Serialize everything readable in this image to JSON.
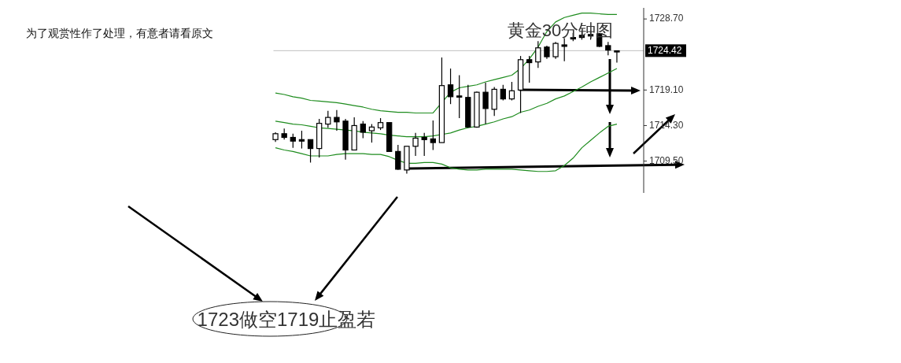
{
  "chart_data": {
    "type": "candlestick",
    "title": "黄金30分钟图",
    "annotations": [
      "为了观赏性作了处理，有意者请看原文",
      "1723做空1719止盈若"
    ],
    "categories": [
      null,
      null,
      null,
      null,
      null,
      null,
      null,
      null,
      null,
      null,
      null,
      null,
      null,
      null,
      null,
      null,
      null,
      null,
      null,
      null,
      null,
      null,
      null,
      null,
      null,
      null,
      null,
      null,
      null,
      null,
      null,
      null,
      null,
      null,
      null,
      null,
      null,
      null,
      null,
      null
    ],
    "ohlc": [
      [
        1712.4,
        1713.4,
        1712.1,
        1713.2
      ],
      [
        1713.2,
        1713.9,
        1712.4,
        1712.7
      ],
      [
        1712.7,
        1713.2,
        1711.3,
        1712.2
      ],
      [
        1712.4,
        1713.6,
        1711.2,
        1712.2
      ],
      [
        1712.4,
        1712.4,
        1709.3,
        1711.2
      ],
      [
        1711.2,
        1715.2,
        1710.0,
        1714.6
      ],
      [
        1714.5,
        1716.3,
        1714.0,
        1715.4
      ],
      [
        1715.4,
        1716.4,
        1713.6,
        1714.8
      ],
      [
        1714.9,
        1715.2,
        1709.7,
        1711.0
      ],
      [
        1711.0,
        1715.4,
        1711.0,
        1714.3
      ],
      [
        1714.5,
        1714.9,
        1712.6,
        1713.4
      ],
      [
        1713.6,
        1714.5,
        1712.0,
        1714.1
      ],
      [
        1714.0,
        1715.3,
        1713.7,
        1714.7
      ],
      [
        1714.7,
        1714.7,
        1710.8,
        1710.8
      ],
      [
        1710.8,
        1711.7,
        1708.3,
        1708.4
      ],
      [
        1708.3,
        1711.5,
        1707.8,
        1711.5
      ],
      [
        1711.5,
        1713.3,
        1710.2,
        1712.6
      ],
      [
        1712.7,
        1713.3,
        1710.2,
        1712.4
      ],
      [
        1712.5,
        1715.0,
        1711.0,
        1712.0
      ],
      [
        1712.0,
        1723.5,
        1712.0,
        1719.7
      ],
      [
        1719.8,
        1722.0,
        1717.2,
        1718.2
      ],
      [
        1718.3,
        1721.1,
        1715.3,
        1718.2
      ],
      [
        1718.1,
        1719.8,
        1714.0,
        1714.1
      ],
      [
        1714.1,
        1718.9,
        1714.0,
        1718.8
      ],
      [
        1718.8,
        1720.1,
        1714.5,
        1716.6
      ],
      [
        1716.5,
        1719.5,
        1715.6,
        1719.2
      ],
      [
        1719.2,
        1719.8,
        1717.7,
        1717.9
      ],
      [
        1717.9,
        1720.2,
        1717.7,
        1719.0
      ],
      [
        1719.1,
        1723.7,
        1716.0,
        1723.2
      ],
      [
        1723.2,
        1723.7,
        1720.1,
        1722.8
      ],
      [
        1722.9,
        1725.7,
        1722.1,
        1724.8
      ],
      [
        1724.9,
        1725.1,
        1723.3,
        1723.6
      ],
      [
        1723.6,
        1725.6,
        1723.3,
        1725.4
      ],
      [
        1725.2,
        1726.1,
        1723.0,
        1725.0
      ],
      [
        1726.2,
        1726.8,
        1725.7,
        1726.0
      ],
      [
        1726.5,
        1727.0,
        1725.9,
        1726.2
      ],
      [
        1726.6,
        1727.2,
        1725.9,
        1726.4
      ],
      [
        1726.7,
        1726.8,
        1724.9,
        1725.0
      ],
      [
        1725.1,
        1725.6,
        1723.8,
        1724.5
      ],
      [
        1724.4,
        1724.4,
        1722.8,
        1724.4
      ]
    ],
    "series": [
      {
        "type": "line",
        "color": "#1e8c1e",
        "values": [
          1718.7,
          1718.5,
          1718.2,
          1718.0,
          1717.7,
          1717.6,
          1717.5,
          1717.4,
          1717.2,
          1717.0,
          1716.8,
          1716.5,
          1716.3,
          1716.2,
          1716.1,
          1716.1,
          1716.0,
          1716.0,
          1716.0,
          1717.4,
          1718.8,
          1719.4,
          1719.6,
          1719.8,
          1720.2,
          1720.5,
          1720.8,
          1721.1,
          1722.0,
          1723.3,
          1724.9,
          1727.0,
          1728.3,
          1728.9,
          1729.2,
          1729.5,
          1729.5,
          1729.4,
          1729.3,
          1729.3
        ]
      },
      {
        "type": "line",
        "color": "#1e8c1e",
        "values": [
          1714.9,
          1714.7,
          1714.5,
          1714.4,
          1714.2,
          1714.0,
          1713.9,
          1713.8,
          1713.7,
          1713.6,
          1713.4,
          1713.3,
          1713.2,
          1713.0,
          1712.9,
          1712.8,
          1712.8,
          1712.8,
          1712.9,
          1713.1,
          1713.3,
          1713.7,
          1714.0,
          1714.2,
          1714.5,
          1714.8,
          1715.2,
          1715.5,
          1716.1,
          1716.4,
          1716.9,
          1717.3,
          1717.9,
          1718.3,
          1718.9,
          1719.5,
          1720.2,
          1720.8,
          1721.4,
          1722.0
        ]
      },
      {
        "type": "line",
        "color": "#1e8c1e",
        "values": [
          1711.3,
          1711.0,
          1710.8,
          1710.5,
          1710.2,
          1710.2,
          1710.2,
          1710.4,
          1710.5,
          1710.5,
          1710.5,
          1710.4,
          1710.4,
          1710.1,
          1709.6,
          1709.2,
          1709.2,
          1709.3,
          1709.3,
          1709.1,
          1708.6,
          1708.4,
          1708.3,
          1708.3,
          1708.4,
          1708.4,
          1708.4,
          1708.4,
          1708.3,
          1708.2,
          1708.1,
          1708.1,
          1708.2,
          1708.9,
          1709.9,
          1711.3,
          1712.3,
          1713.3,
          1714.2,
          1714.5
        ]
      }
    ],
    "ylim": [
      1705.2,
      1730.2
    ],
    "yticks": [
      {
        "value": 1728.7,
        "label": "1728.70"
      },
      {
        "value": 1719.1,
        "label": "1719.10"
      },
      {
        "value": 1714.3,
        "label": "1714.30"
      },
      {
        "value": 1709.5,
        "label": "1709.50"
      }
    ],
    "ref_lines": [
      {
        "axis": "y",
        "value": 1724.42,
        "label": "1724.42",
        "color": "#c0c0c0"
      }
    ],
    "tick_labels": "y"
  }
}
